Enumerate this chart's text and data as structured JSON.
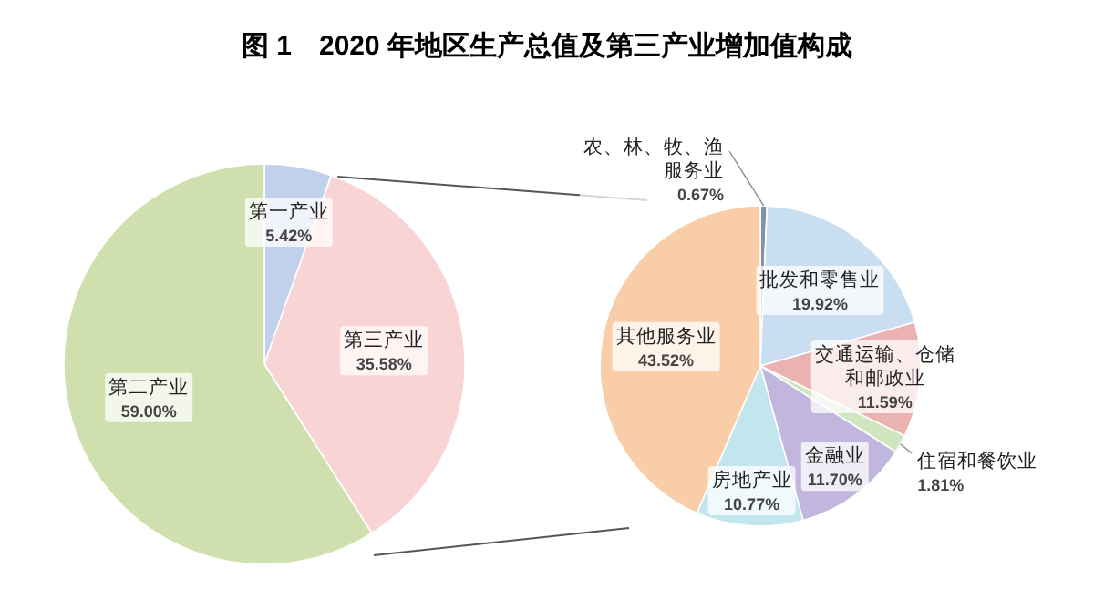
{
  "chart_data": [
    {
      "type": "pie",
      "title": "图 1　2020 年地区生产总值及第三产业增加值构成",
      "categories": [
        "第一产业",
        "第三产业",
        "第二产业"
      ],
      "values": [
        5.42,
        35.58,
        59.0
      ],
      "colors": [
        "#8eaadb",
        "#f4b0b0",
        "#a9c46c"
      ],
      "value_labels": [
        "5.42%",
        "35.58%",
        "59.00%"
      ]
    },
    {
      "type": "pie",
      "categories": [
        "农、林、牧、渔服务业",
        "批发和零售业",
        "交通运输、仓储和邮政业",
        "住宿和餐饮业",
        "金融业",
        "房地产业",
        "其他服务业"
      ],
      "values": [
        0.67,
        19.92,
        11.59,
        1.81,
        11.7,
        10.77,
        43.52
      ],
      "colors": [
        "#1f3864",
        "#9dc3e6",
        "#d9726f",
        "#a9d18e",
        "#8e7cc3",
        "#8fd0e0",
        "#f4a460"
      ],
      "value_labels": [
        "0.67%",
        "19.92%",
        "11.59%",
        "1.81%",
        "11.70%",
        "10.77%",
        "43.52%"
      ]
    }
  ]
}
